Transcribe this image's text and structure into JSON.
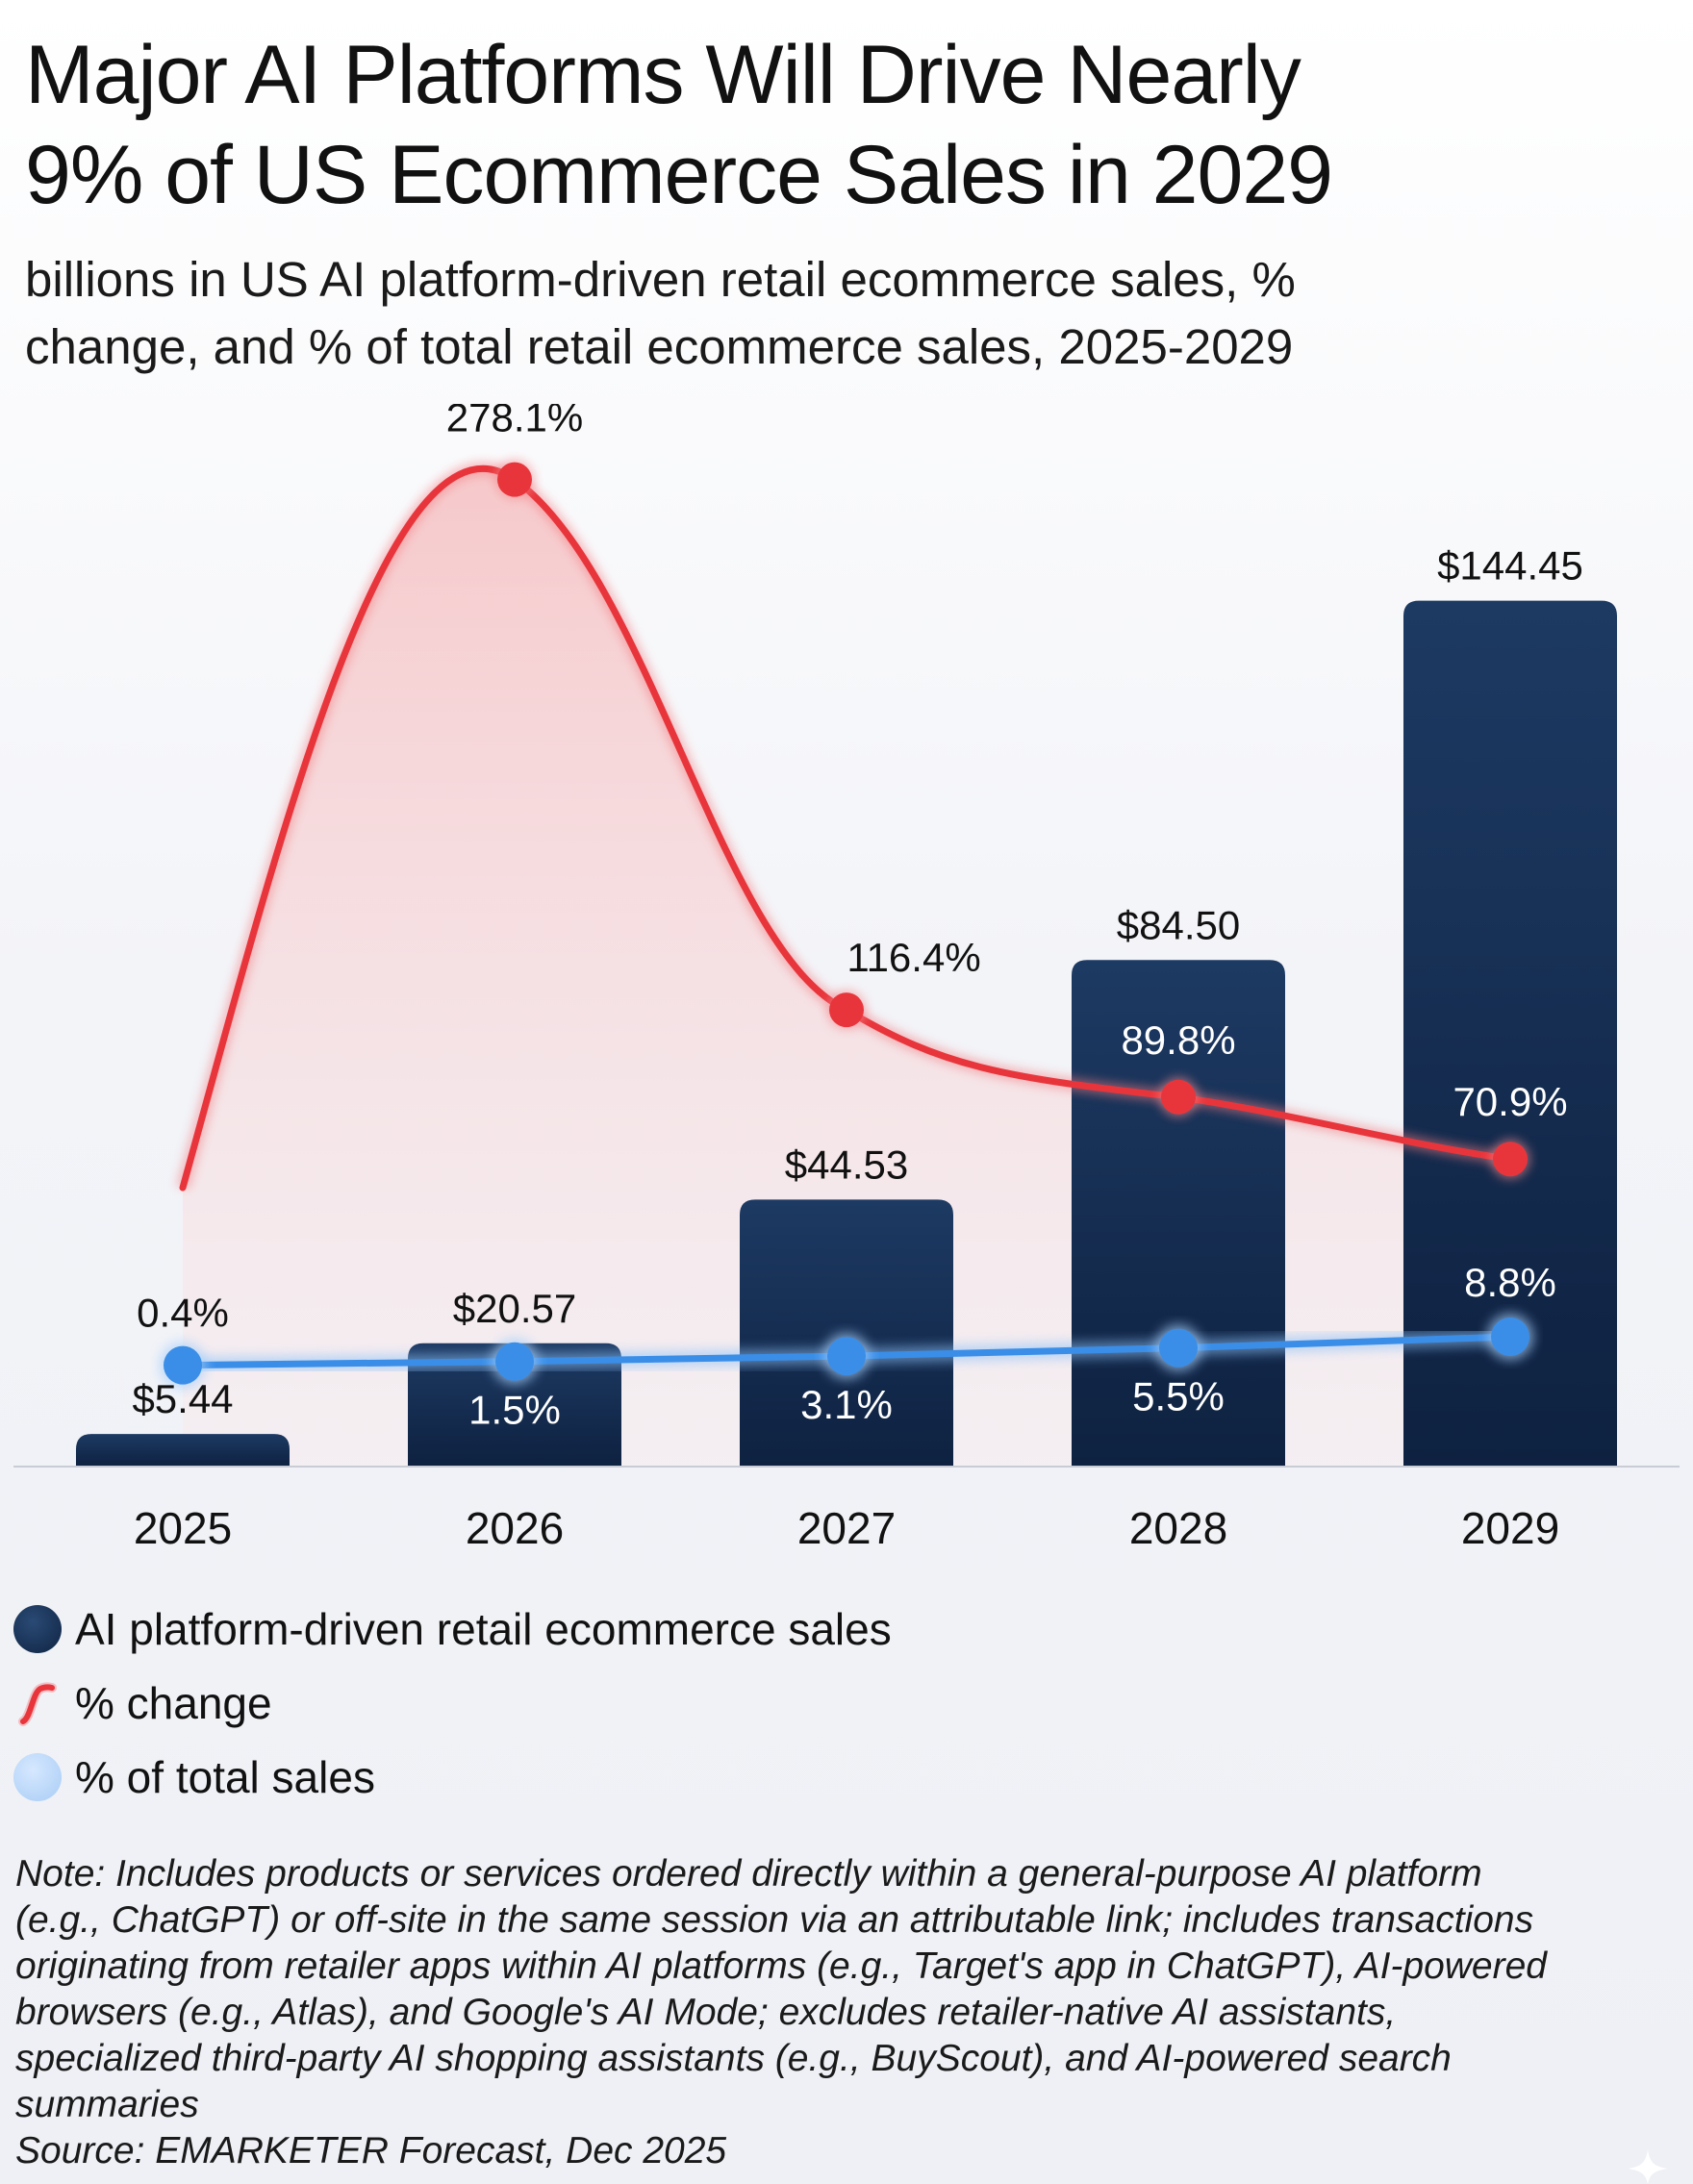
{
  "header": {
    "title_line1": "Major AI Platforms Will Drive Nearly",
    "title_line2": "9% of US Ecommerce Sales in 2029",
    "subtitle_line1": "billions in US AI platform-driven retail ecommerce sales, %",
    "subtitle_line2": "change, and % of total retail ecommerce sales, 2025-2029"
  },
  "chart_data": {
    "type": "bar",
    "categories": [
      "2025",
      "2026",
      "2027",
      "2028",
      "2029"
    ],
    "series": [
      {
        "name": "AI platform-driven retail ecommerce sales",
        "type": "bar",
        "values": [
          5.44,
          20.57,
          44.53,
          84.5,
          144.45
        ],
        "labels": [
          "$5.44",
          "$20.57",
          "$44.53",
          "$84.50",
          "$144.45"
        ]
      },
      {
        "name": "% change",
        "type": "line",
        "values": [
          null,
          278.1,
          116.4,
          89.8,
          70.9
        ],
        "labels": [
          "",
          "278.1%",
          "116.4%",
          "89.8%",
          "70.9%"
        ]
      },
      {
        "name": "% of total sales",
        "type": "line",
        "values": [
          0.4,
          1.5,
          3.1,
          5.5,
          8.8
        ],
        "labels": [
          "0.4%",
          "1.5%",
          "3.1%",
          "5.5%",
          "8.8%"
        ]
      }
    ],
    "colors": {
      "bar": "#17325a",
      "change_line": "#e8353b",
      "share_line": "#3a8ee8"
    },
    "grid": false,
    "legend_position": "bottom-left"
  },
  "legend": {
    "items": [
      {
        "label": "AI platform-driven retail ecommerce sales",
        "icon": "navy-circle-icon"
      },
      {
        "label": "% change",
        "icon": "red-curve-icon"
      },
      {
        "label": "% of total sales",
        "icon": "light-blue-circle-icon"
      }
    ]
  },
  "footer": {
    "note_lines": [
      "Note: Includes products or services ordered directly within a general-purpose AI platform",
      "(e.g., ChatGPT) or off-site in the same session via an attributable link; includes transactions",
      "originating from retailer apps within AI platforms (e.g., Target's app in ChatGPT), AI-powered",
      "browsers (e.g., Atlas), and Google's AI Mode; excludes retailer-native AI assistants,",
      "specialized third-party AI shopping assistants (e.g., BuyScout), and AI-powered search",
      "summaries"
    ],
    "source": "Source: EMARKETER Forecast, Dec 2025"
  }
}
